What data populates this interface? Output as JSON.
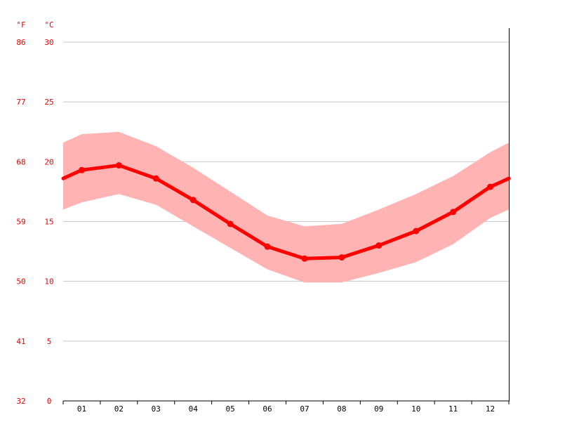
{
  "chart_data": {
    "type": "line",
    "title": "",
    "xlabel": "",
    "ylabel": "",
    "units": {
      "fahrenheit": "°F",
      "celsius": "°C"
    },
    "categories": [
      "01",
      "02",
      "03",
      "04",
      "05",
      "06",
      "07",
      "08",
      "09",
      "10",
      "11",
      "12"
    ],
    "y_ticks_c": [
      "30",
      "25",
      "20",
      "15",
      "10",
      "5",
      "0"
    ],
    "y_ticks_f": [
      "86",
      "77",
      "68",
      "59",
      "50",
      "41",
      "32"
    ],
    "ylim": [
      0,
      30
    ],
    "grid": true,
    "series": [
      {
        "values": [
          19.3,
          19.7,
          18.6,
          16.8,
          14.8,
          12.9,
          11.9,
          12.0,
          13.0,
          14.2,
          15.8,
          17.9
        ],
        "style": "line-with-markers"
      }
    ],
    "range_band": {
      "upper": [
        22.3,
        22.5,
        21.3,
        19.5,
        17.5,
        15.5,
        14.6,
        14.8,
        16.0,
        17.3,
        18.8,
        20.8
      ],
      "lower": [
        16.6,
        17.3,
        16.4,
        14.6,
        12.8,
        11.0,
        9.9,
        9.9,
        10.7,
        11.6,
        13.1,
        15.3
      ],
      "edge_upper": 21.6,
      "edge_lower": 16.0
    },
    "edge_value": 18.6,
    "colors": {
      "line": "#ff0000",
      "band": "#ffb3b3",
      "axis_text": "#ee0000",
      "grid": "#c8c8c8",
      "axis": "#000000"
    }
  }
}
